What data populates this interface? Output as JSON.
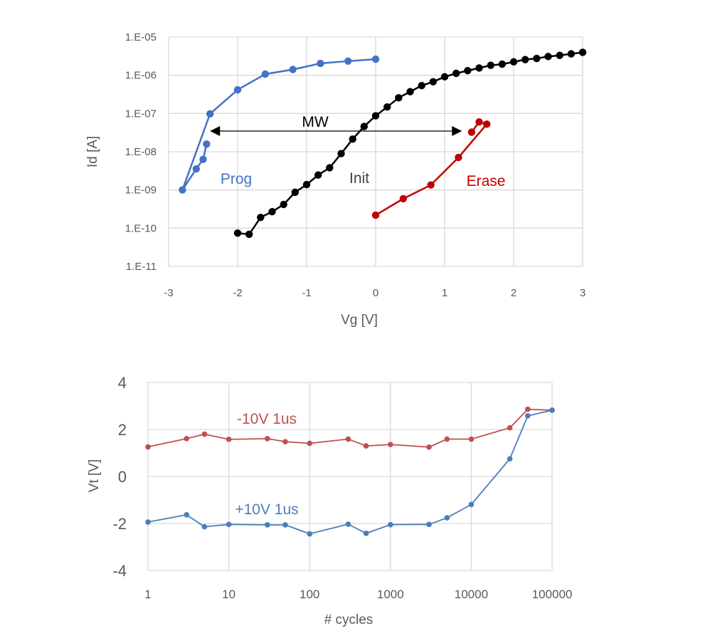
{
  "chart_data": [
    {
      "type": "line",
      "xlabel": "Vg [V]",
      "ylabel": "Id [A]",
      "yscale": "log",
      "xlim": [
        -3,
        3
      ],
      "ylim": [
        1e-11,
        1e-05
      ],
      "xticks": [
        "-3",
        "-2",
        "-1",
        "0",
        "1",
        "2",
        "3"
      ],
      "yticks": [
        "1.E-05",
        "1.E-06",
        "1.E-07",
        "1.E-08",
        "1.E-09",
        "1.E-10",
        "1.E-11"
      ],
      "grid": true,
      "annotations": {
        "mw": "MW",
        "mw_from_vg": -2.4,
        "mw_to_vg": 1.25,
        "mw_log_id": -7.46
      },
      "series": [
        {
          "name": "Prog",
          "color": "#4472C4",
          "x": [
            -2.45,
            -2.5,
            -2.6,
            -2.8,
            -2.4,
            -2.0,
            -1.6,
            -1.2,
            -0.8,
            -0.4,
            0.0
          ],
          "log10_y": [
            -7.8,
            -8.2,
            -8.45,
            -9.0,
            -7.01,
            -6.38,
            -5.97,
            -5.85,
            -5.69,
            -5.63,
            -5.58
          ]
        },
        {
          "name": "Init",
          "color": "#000000",
          "x": [
            -2.0,
            -1.833,
            -1.667,
            -1.5,
            -1.333,
            -1.167,
            -1.0,
            -0.833,
            -0.667,
            -0.5,
            -0.333,
            -0.167,
            0.0,
            0.167,
            0.333,
            0.5,
            0.667,
            0.833,
            1.0,
            1.167,
            1.333,
            1.5,
            1.667,
            1.833,
            2.0,
            2.167,
            2.333,
            2.5,
            2.667,
            2.833,
            3.0
          ],
          "log10_y": [
            -10.13,
            -10.16,
            -9.72,
            -9.57,
            -9.38,
            -9.06,
            -8.86,
            -8.61,
            -8.42,
            -8.05,
            -7.67,
            -7.34,
            -7.06,
            -6.83,
            -6.59,
            -6.43,
            -6.27,
            -6.17,
            -6.04,
            -5.95,
            -5.88,
            -5.81,
            -5.74,
            -5.71,
            -5.65,
            -5.59,
            -5.56,
            -5.51,
            -5.48,
            -5.44,
            -5.4
          ]
        },
        {
          "name": "Erase",
          "color": "#C00000",
          "x": [
            0.0,
            0.4,
            0.8,
            1.2,
            1.61,
            1.5,
            1.39
          ],
          "log10_y": [
            -9.66,
            -9.23,
            -8.87,
            -8.15,
            -7.28,
            -7.22,
            -7.49
          ]
        }
      ]
    },
    {
      "type": "line",
      "xlabel": "# cycles",
      "ylabel": "Vt [V]",
      "xscale": "log",
      "xlim": [
        1,
        100000
      ],
      "ylim": [
        -4,
        4
      ],
      "xticks": [
        "1",
        "10",
        "100",
        "1000",
        "10000",
        "100000"
      ],
      "yticks": [
        "4",
        "2",
        "0",
        "-2",
        "-4"
      ],
      "grid": true,
      "series": [
        {
          "name": "-10V 1us",
          "color": "#C0504D",
          "x": [
            1,
            3,
            5,
            10,
            30,
            50,
            100,
            300,
            500,
            1000,
            3000,
            5000,
            10000,
            30000,
            50000,
            100000
          ],
          "y": [
            1.26,
            1.61,
            1.8,
            1.58,
            1.61,
            1.48,
            1.41,
            1.59,
            1.3,
            1.36,
            1.25,
            1.59,
            1.59,
            2.07,
            2.86,
            2.82
          ]
        },
        {
          "name": "+10V 1us",
          "color": "#4A7EBB",
          "x": [
            1,
            3,
            5,
            10,
            30,
            50,
            100,
            300,
            500,
            1000,
            3000,
            5000,
            10000,
            30000,
            50000,
            100000
          ],
          "y": [
            -1.94,
            -1.63,
            -2.14,
            -2.04,
            -2.06,
            -2.06,
            -2.44,
            -2.03,
            -2.42,
            -2.05,
            -2.04,
            -1.76,
            -1.19,
            0.75,
            2.58,
            2.82
          ]
        }
      ]
    }
  ]
}
